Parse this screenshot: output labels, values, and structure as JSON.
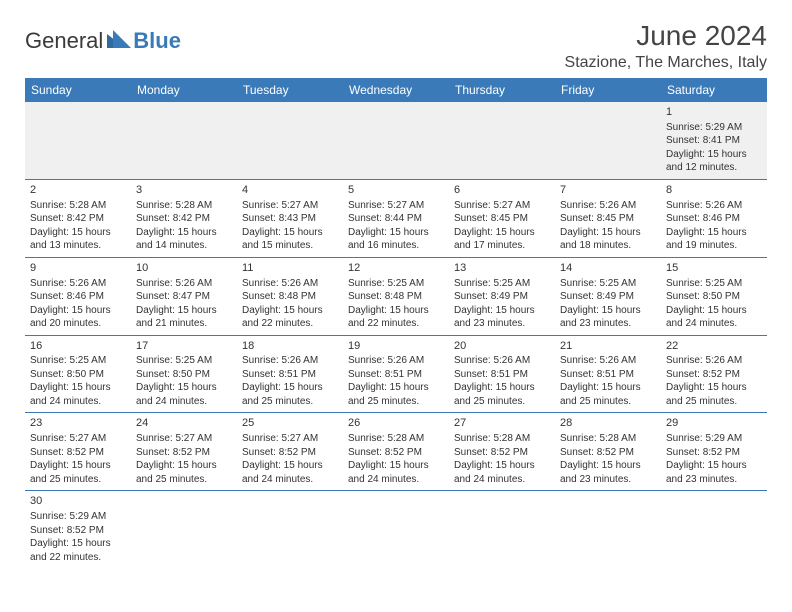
{
  "logo": {
    "textA": "General",
    "textB": "Blue"
  },
  "header": {
    "title": "June 2024",
    "location": "Stazione, The Marches, Italy"
  },
  "colors": {
    "header_bg": "#3a7ab8",
    "header_text": "#ffffff",
    "body_text": "#333333",
    "border": "#3a7ab8",
    "firstrow_bg": "#f0f0f0",
    "logo_gray": "#3a3a3a",
    "logo_blue": "#3a7ab8"
  },
  "daynames": [
    "Sunday",
    "Monday",
    "Tuesday",
    "Wednesday",
    "Thursday",
    "Friday",
    "Saturday"
  ],
  "weeks": [
    [
      null,
      null,
      null,
      null,
      null,
      null,
      {
        "d": "1",
        "sr": "5:29 AM",
        "ss": "8:41 PM",
        "dl": "15 hours and 12 minutes."
      }
    ],
    [
      {
        "d": "2",
        "sr": "5:28 AM",
        "ss": "8:42 PM",
        "dl": "15 hours and 13 minutes."
      },
      {
        "d": "3",
        "sr": "5:28 AM",
        "ss": "8:42 PM",
        "dl": "15 hours and 14 minutes."
      },
      {
        "d": "4",
        "sr": "5:27 AM",
        "ss": "8:43 PM",
        "dl": "15 hours and 15 minutes."
      },
      {
        "d": "5",
        "sr": "5:27 AM",
        "ss": "8:44 PM",
        "dl": "15 hours and 16 minutes."
      },
      {
        "d": "6",
        "sr": "5:27 AM",
        "ss": "8:45 PM",
        "dl": "15 hours and 17 minutes."
      },
      {
        "d": "7",
        "sr": "5:26 AM",
        "ss": "8:45 PM",
        "dl": "15 hours and 18 minutes."
      },
      {
        "d": "8",
        "sr": "5:26 AM",
        "ss": "8:46 PM",
        "dl": "15 hours and 19 minutes."
      }
    ],
    [
      {
        "d": "9",
        "sr": "5:26 AM",
        "ss": "8:46 PM",
        "dl": "15 hours and 20 minutes."
      },
      {
        "d": "10",
        "sr": "5:26 AM",
        "ss": "8:47 PM",
        "dl": "15 hours and 21 minutes."
      },
      {
        "d": "11",
        "sr": "5:26 AM",
        "ss": "8:48 PM",
        "dl": "15 hours and 22 minutes."
      },
      {
        "d": "12",
        "sr": "5:25 AM",
        "ss": "8:48 PM",
        "dl": "15 hours and 22 minutes."
      },
      {
        "d": "13",
        "sr": "5:25 AM",
        "ss": "8:49 PM",
        "dl": "15 hours and 23 minutes."
      },
      {
        "d": "14",
        "sr": "5:25 AM",
        "ss": "8:49 PM",
        "dl": "15 hours and 23 minutes."
      },
      {
        "d": "15",
        "sr": "5:25 AM",
        "ss": "8:50 PM",
        "dl": "15 hours and 24 minutes."
      }
    ],
    [
      {
        "d": "16",
        "sr": "5:25 AM",
        "ss": "8:50 PM",
        "dl": "15 hours and 24 minutes."
      },
      {
        "d": "17",
        "sr": "5:25 AM",
        "ss": "8:50 PM",
        "dl": "15 hours and 24 minutes."
      },
      {
        "d": "18",
        "sr": "5:26 AM",
        "ss": "8:51 PM",
        "dl": "15 hours and 25 minutes."
      },
      {
        "d": "19",
        "sr": "5:26 AM",
        "ss": "8:51 PM",
        "dl": "15 hours and 25 minutes."
      },
      {
        "d": "20",
        "sr": "5:26 AM",
        "ss": "8:51 PM",
        "dl": "15 hours and 25 minutes."
      },
      {
        "d": "21",
        "sr": "5:26 AM",
        "ss": "8:51 PM",
        "dl": "15 hours and 25 minutes."
      },
      {
        "d": "22",
        "sr": "5:26 AM",
        "ss": "8:52 PM",
        "dl": "15 hours and 25 minutes."
      }
    ],
    [
      {
        "d": "23",
        "sr": "5:27 AM",
        "ss": "8:52 PM",
        "dl": "15 hours and 25 minutes."
      },
      {
        "d": "24",
        "sr": "5:27 AM",
        "ss": "8:52 PM",
        "dl": "15 hours and 25 minutes."
      },
      {
        "d": "25",
        "sr": "5:27 AM",
        "ss": "8:52 PM",
        "dl": "15 hours and 24 minutes."
      },
      {
        "d": "26",
        "sr": "5:28 AM",
        "ss": "8:52 PM",
        "dl": "15 hours and 24 minutes."
      },
      {
        "d": "27",
        "sr": "5:28 AM",
        "ss": "8:52 PM",
        "dl": "15 hours and 24 minutes."
      },
      {
        "d": "28",
        "sr": "5:28 AM",
        "ss": "8:52 PM",
        "dl": "15 hours and 23 minutes."
      },
      {
        "d": "29",
        "sr": "5:29 AM",
        "ss": "8:52 PM",
        "dl": "15 hours and 23 minutes."
      }
    ],
    [
      {
        "d": "30",
        "sr": "5:29 AM",
        "ss": "8:52 PM",
        "dl": "15 hours and 22 minutes."
      },
      null,
      null,
      null,
      null,
      null,
      null
    ]
  ],
  "labels": {
    "sunrise": "Sunrise:",
    "sunset": "Sunset:",
    "daylight": "Daylight:"
  }
}
